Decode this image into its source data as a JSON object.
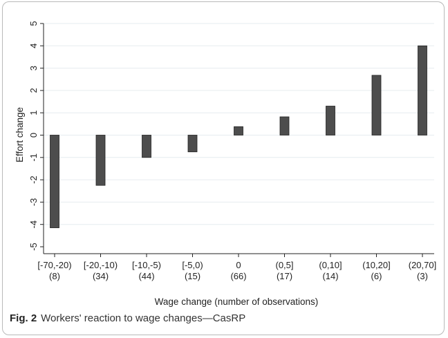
{
  "caption": {
    "label": "Fig. 2",
    "text": "Workers' reaction to wage changes—CasRP"
  },
  "chart_data": {
    "type": "bar",
    "xlabel": "Wage change (number of observations)",
    "ylabel": "Effort change",
    "ylim": [
      -5,
      5
    ],
    "yticks": [
      5,
      4,
      3,
      2,
      1,
      0,
      -1,
      -2,
      -3,
      -4,
      -5
    ],
    "grid": true,
    "categories": [
      "[-70,-20)",
      "[-20,-10)",
      "[-10,-5)",
      "[-5,0)",
      "0",
      "(0,5]",
      "(0,10]",
      "(10,20]",
      "(20,70]"
    ],
    "counts": [
      "(8)",
      "(34)",
      "(44)",
      "(15)",
      "(66)",
      "(17)",
      "(14)",
      "(6)",
      "(3)"
    ],
    "values": [
      -4.15,
      -2.25,
      -1.0,
      -0.75,
      0.38,
      0.82,
      1.3,
      2.68,
      4.0
    ],
    "bar_color": "#4d4d4d"
  }
}
